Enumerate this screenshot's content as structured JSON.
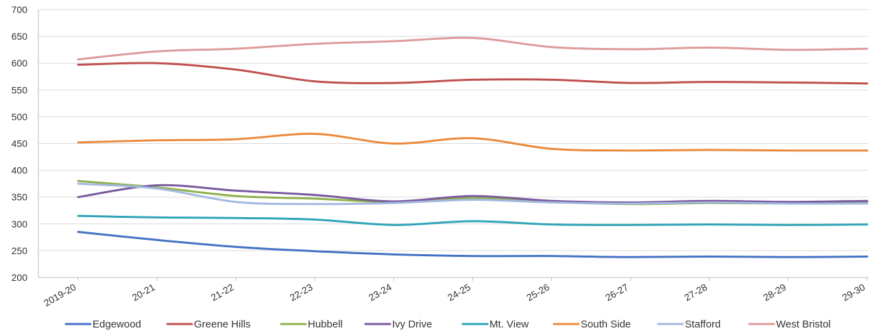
{
  "chart_data": {
    "type": "line",
    "title": "",
    "xlabel": "",
    "ylabel": "",
    "ylim": [
      200,
      700
    ],
    "yticks": [
      "200",
      "250",
      "300",
      "350",
      "400",
      "450",
      "500",
      "550",
      "600",
      "650",
      "700"
    ],
    "categories": [
      "2019-20",
      "20-21",
      "21-22",
      "22-23",
      "23-24",
      "24-25",
      "25-26",
      "26-27",
      "27-28",
      "28-29",
      "29-30"
    ],
    "grid": "horizontal",
    "legend_position": "bottom",
    "series": [
      {
        "name": "Edgewood",
        "color": "#4472c4",
        "values": [
          285,
          270,
          257,
          249,
          243,
          240,
          240,
          238,
          239,
          238,
          239
        ]
      },
      {
        "name": "Greene Hills",
        "color": "#c0504d",
        "values": [
          597,
          600,
          588,
          566,
          563,
          569,
          569,
          563,
          565,
          564,
          562
        ]
      },
      {
        "name": "Hubbell",
        "color": "#8fb24c",
        "values": [
          380,
          368,
          352,
          347,
          341,
          348,
          341,
          337,
          339,
          338,
          340
        ]
      },
      {
        "name": "Ivy Drive",
        "color": "#7a5a9e",
        "values": [
          350,
          372,
          362,
          354,
          342,
          352,
          343,
          340,
          343,
          341,
          343
        ]
      },
      {
        "name": "Mt. View",
        "color": "#2fa4b7",
        "values": [
          315,
          312,
          311,
          308,
          298,
          305,
          299,
          298,
          299,
          298,
          299
        ]
      },
      {
        "name": "South Side",
        "color": "#eb8a3b",
        "values": [
          452,
          456,
          458,
          468,
          450,
          460,
          440,
          437,
          438,
          437,
          437
        ]
      },
      {
        "name": "Stafford",
        "color": "#a3b8e0",
        "values": [
          375,
          366,
          341,
          337,
          339,
          345,
          340,
          338,
          340,
          338,
          338
        ]
      },
      {
        "name": "West Bristol",
        "color": "#de9b9b",
        "values": [
          607,
          622,
          627,
          636,
          641,
          647,
          630,
          626,
          629,
          625,
          627
        ]
      }
    ]
  }
}
